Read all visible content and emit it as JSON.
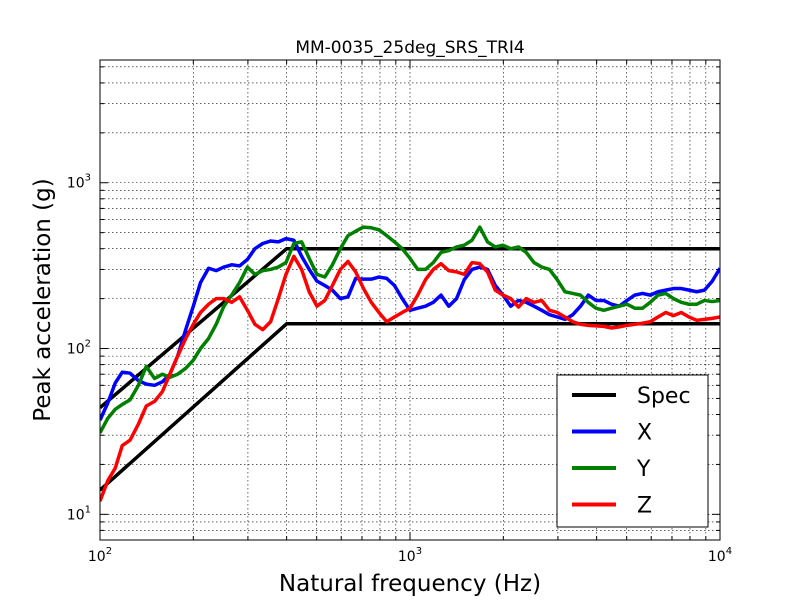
{
  "chart_data": {
    "type": "line",
    "title": "MM-0035_25deg_SRS_TRI4",
    "xlabel": "Natural frequency (Hz)",
    "ylabel": "Peak acceleration (g)",
    "xscale": "log",
    "yscale": "log",
    "xlim": [
      100,
      10000
    ],
    "ylim": [
      7,
      5500
    ],
    "grid": true,
    "legend_position": "bottom-right",
    "x_ticks": [
      {
        "value": 100,
        "base": "10",
        "exp": "2"
      },
      {
        "value": 1000,
        "base": "10",
        "exp": "3"
      },
      {
        "value": 10000,
        "base": "10",
        "exp": "4"
      }
    ],
    "y_ticks": [
      {
        "value": 10,
        "base": "10",
        "exp": "1"
      },
      {
        "value": 100,
        "base": "10",
        "exp": "2"
      },
      {
        "value": 1000,
        "base": "10",
        "exp": "3"
      }
    ],
    "series": [
      {
        "name": "Spec",
        "color": "#000000",
        "lines": [
          [
            [
              100,
              44
            ],
            [
              400,
              400
            ],
            [
              10000,
              400
            ]
          ],
          [
            [
              100,
              14
            ],
            [
              400,
              141
            ],
            [
              10000,
              141
            ]
          ]
        ]
      },
      {
        "name": "X",
        "color": "#0000ff",
        "points": [
          [
            100,
            37
          ],
          [
            106,
            47
          ],
          [
            112,
            62
          ],
          [
            118,
            72
          ],
          [
            125,
            71
          ],
          [
            133,
            64
          ],
          [
            141,
            61
          ],
          [
            150,
            60
          ],
          [
            159,
            63
          ],
          [
            168,
            70
          ],
          [
            178,
            90
          ],
          [
            189,
            130
          ],
          [
            200,
            180
          ],
          [
            211,
            250
          ],
          [
            224,
            305
          ],
          [
            237,
            295
          ],
          [
            251,
            310
          ],
          [
            266,
            320
          ],
          [
            282,
            315
          ],
          [
            299,
            345
          ],
          [
            316,
            400
          ],
          [
            335,
            430
          ],
          [
            355,
            445
          ],
          [
            376,
            440
          ],
          [
            398,
            460
          ],
          [
            422,
            450
          ],
          [
            447,
            360
          ],
          [
            473,
            300
          ],
          [
            501,
            255
          ],
          [
            531,
            240
          ],
          [
            562,
            225
          ],
          [
            596,
            200
          ],
          [
            631,
            205
          ],
          [
            668,
            265
          ],
          [
            708,
            262
          ],
          [
            750,
            262
          ],
          [
            794,
            270
          ],
          [
            841,
            265
          ],
          [
            891,
            240
          ],
          [
            944,
            200
          ],
          [
            1000,
            170
          ],
          [
            1059,
            175
          ],
          [
            1122,
            180
          ],
          [
            1189,
            190
          ],
          [
            1259,
            210
          ],
          [
            1334,
            180
          ],
          [
            1413,
            200
          ],
          [
            1496,
            260
          ],
          [
            1585,
            300
          ],
          [
            1679,
            310
          ],
          [
            1778,
            300
          ],
          [
            1884,
            240
          ],
          [
            1995,
            210
          ],
          [
            2113,
            180
          ],
          [
            2239,
            195
          ],
          [
            2371,
            190
          ],
          [
            2512,
            180
          ],
          [
            2661,
            170
          ],
          [
            2818,
            160
          ],
          [
            2985,
            155
          ],
          [
            3162,
            150
          ],
          [
            3350,
            160
          ],
          [
            3548,
            180
          ],
          [
            3758,
            210
          ],
          [
            3981,
            195
          ],
          [
            4217,
            195
          ],
          [
            4467,
            185
          ],
          [
            4732,
            180
          ],
          [
            5012,
            195
          ],
          [
            5309,
            210
          ],
          [
            5623,
            215
          ],
          [
            5957,
            210
          ],
          [
            6310,
            220
          ],
          [
            6683,
            225
          ],
          [
            7079,
            230
          ],
          [
            7499,
            230
          ],
          [
            7943,
            225
          ],
          [
            8414,
            220
          ],
          [
            8913,
            225
          ],
          [
            9441,
            255
          ],
          [
            10000,
            305
          ]
        ]
      },
      {
        "name": "Y",
        "color": "#008000",
        "points": [
          [
            100,
            31
          ],
          [
            106,
            38
          ],
          [
            112,
            43
          ],
          [
            118,
            46
          ],
          [
            125,
            49
          ],
          [
            133,
            60
          ],
          [
            141,
            78
          ],
          [
            150,
            66
          ],
          [
            159,
            70
          ],
          [
            168,
            67
          ],
          [
            178,
            70
          ],
          [
            189,
            76
          ],
          [
            200,
            85
          ],
          [
            211,
            100
          ],
          [
            224,
            115
          ],
          [
            237,
            140
          ],
          [
            251,
            180
          ],
          [
            266,
            210
          ],
          [
            282,
            250
          ],
          [
            299,
            310
          ],
          [
            316,
            280
          ],
          [
            335,
            295
          ],
          [
            355,
            300
          ],
          [
            376,
            310
          ],
          [
            398,
            330
          ],
          [
            422,
            430
          ],
          [
            447,
            440
          ],
          [
            473,
            350
          ],
          [
            501,
            280
          ],
          [
            531,
            270
          ],
          [
            562,
            320
          ],
          [
            596,
            400
          ],
          [
            631,
            480
          ],
          [
            668,
            510
          ],
          [
            708,
            540
          ],
          [
            750,
            535
          ],
          [
            794,
            520
          ],
          [
            841,
            480
          ],
          [
            891,
            440
          ],
          [
            944,
            400
          ],
          [
            1000,
            350
          ],
          [
            1059,
            300
          ],
          [
            1122,
            300
          ],
          [
            1189,
            330
          ],
          [
            1259,
            380
          ],
          [
            1334,
            390
          ],
          [
            1413,
            410
          ],
          [
            1496,
            420
          ],
          [
            1585,
            450
          ],
          [
            1679,
            540
          ],
          [
            1778,
            440
          ],
          [
            1884,
            410
          ],
          [
            1995,
            420
          ],
          [
            2113,
            400
          ],
          [
            2239,
            410
          ],
          [
            2371,
            380
          ],
          [
            2512,
            330
          ],
          [
            2661,
            310
          ],
          [
            2818,
            300
          ],
          [
            2985,
            260
          ],
          [
            3162,
            220
          ],
          [
            3350,
            215
          ],
          [
            3548,
            210
          ],
          [
            3758,
            190
          ],
          [
            3981,
            175
          ],
          [
            4217,
            170
          ],
          [
            4467,
            175
          ],
          [
            4732,
            180
          ],
          [
            5012,
            185
          ],
          [
            5309,
            175
          ],
          [
            5623,
            175
          ],
          [
            5957,
            190
          ],
          [
            6310,
            210
          ],
          [
            6683,
            215
          ],
          [
            7079,
            200
          ],
          [
            7499,
            190
          ],
          [
            7943,
            185
          ],
          [
            8414,
            185
          ],
          [
            8913,
            195
          ],
          [
            9441,
            192
          ],
          [
            10000,
            195
          ]
        ]
      },
      {
        "name": "Z",
        "color": "#ff0000",
        "points": [
          [
            100,
            12
          ],
          [
            106,
            16
          ],
          [
            112,
            19
          ],
          [
            118,
            26
          ],
          [
            125,
            28
          ],
          [
            133,
            35
          ],
          [
            141,
            45
          ],
          [
            150,
            48
          ],
          [
            159,
            55
          ],
          [
            168,
            70
          ],
          [
            178,
            90
          ],
          [
            189,
            115
          ],
          [
            200,
            140
          ],
          [
            211,
            165
          ],
          [
            224,
            185
          ],
          [
            237,
            200
          ],
          [
            251,
            200
          ],
          [
            266,
            190
          ],
          [
            282,
            205
          ],
          [
            299,
            170
          ],
          [
            316,
            140
          ],
          [
            335,
            130
          ],
          [
            355,
            145
          ],
          [
            376,
            200
          ],
          [
            398,
            280
          ],
          [
            422,
            360
          ],
          [
            447,
            300
          ],
          [
            473,
            220
          ],
          [
            501,
            180
          ],
          [
            531,
            195
          ],
          [
            562,
            240
          ],
          [
            596,
            300
          ],
          [
            631,
            335
          ],
          [
            668,
            290
          ],
          [
            708,
            230
          ],
          [
            750,
            190
          ],
          [
            794,
            165
          ],
          [
            841,
            145
          ],
          [
            891,
            155
          ],
          [
            944,
            165
          ],
          [
            1000,
            175
          ],
          [
            1059,
            210
          ],
          [
            1122,
            260
          ],
          [
            1189,
            300
          ],
          [
            1259,
            325
          ],
          [
            1334,
            295
          ],
          [
            1413,
            290
          ],
          [
            1496,
            280
          ],
          [
            1585,
            330
          ],
          [
            1679,
            325
          ],
          [
            1778,
            290
          ],
          [
            1884,
            225
          ],
          [
            1995,
            210
          ],
          [
            2113,
            200
          ],
          [
            2239,
            178
          ],
          [
            2371,
            200
          ],
          [
            2512,
            190
          ],
          [
            2661,
            195
          ],
          [
            2818,
            170
          ],
          [
            2985,
            165
          ],
          [
            3162,
            155
          ],
          [
            3350,
            145
          ],
          [
            3548,
            140
          ],
          [
            3758,
            138
          ],
          [
            3981,
            137
          ],
          [
            4217,
            136
          ],
          [
            4467,
            133
          ],
          [
            4732,
            135
          ],
          [
            5012,
            138
          ],
          [
            5309,
            140
          ],
          [
            5623,
            142
          ],
          [
            5957,
            145
          ],
          [
            6310,
            155
          ],
          [
            6683,
            165
          ],
          [
            7079,
            158
          ],
          [
            7499,
            165
          ],
          [
            7943,
            155
          ],
          [
            8414,
            148
          ],
          [
            8913,
            150
          ],
          [
            9441,
            152
          ],
          [
            10000,
            155
          ]
        ]
      }
    ]
  }
}
